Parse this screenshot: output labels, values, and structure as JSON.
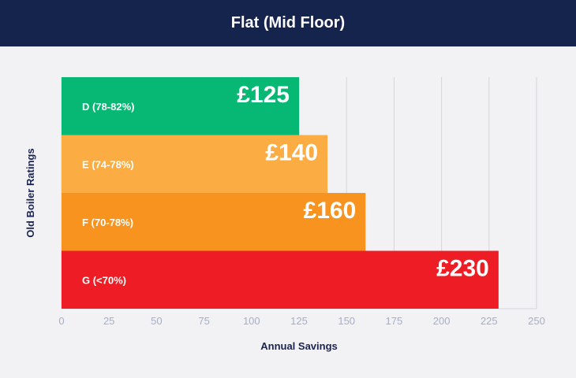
{
  "header": {
    "title": "Flat (Mid Floor)"
  },
  "chart_data": {
    "type": "bar",
    "orientation": "horizontal",
    "title": "Flat (Mid Floor)",
    "xlabel": "Annual Savings",
    "ylabel": "Old Boiler Ratings",
    "categories": [
      "D (78-82%)",
      "E (74-78%)",
      "F (70-78%)",
      "G (<70%)"
    ],
    "values": [
      125,
      140,
      160,
      230
    ],
    "value_labels": [
      "£125",
      "£140",
      "£160",
      "£230"
    ],
    "bar_colors": [
      "#07b874",
      "#fbad43",
      "#f7931e",
      "#ee1c25"
    ],
    "xlim": [
      0,
      250
    ],
    "xticks": [
      0,
      25,
      50,
      75,
      100,
      125,
      150,
      175,
      200,
      225,
      250
    ],
    "grid": "vertical",
    "legend": "none"
  }
}
